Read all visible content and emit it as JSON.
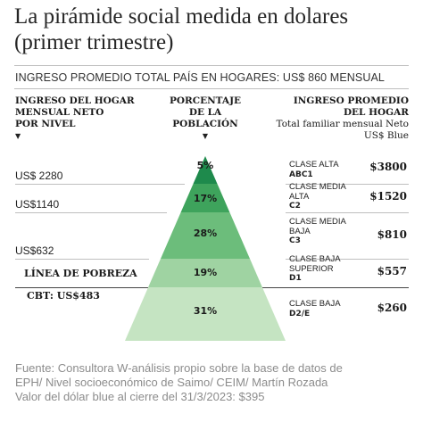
{
  "header": {
    "title": "La pirámide social medida en dolares (primer trimestre)",
    "subtitle": "INGRESO PROMEDIO TOTAL PAÍS EN HOGARES: US$ 860 MENSUAL"
  },
  "columns": {
    "left": [
      "INGRESO DEL HOGAR",
      "MENSUAL NETO",
      "POR NIVEL"
    ],
    "middle": [
      "PORCENTAJE",
      "DE LA",
      "POBLACIÓN"
    ],
    "right": [
      "INGRESO PROMEDIO",
      "DEL HOGAR"
    ],
    "right_sub": [
      "Total familiar mensual Neto",
      "US$ Blue"
    ],
    "arrow": "▼"
  },
  "thresholds": [
    "US$ 2280",
    "US$1140",
    "US$632"
  ],
  "poverty_line": "LÍNEA DE POBREZA",
  "cbt": "CBT: US$483",
  "chart_data": {
    "type": "pyramid",
    "title": "La pirámide social medida en dolares (primer trimestre)",
    "levels": [
      {
        "class_lines": [
          "CLASE ALTA"
        ],
        "code": "ABC1",
        "percent_label": "5%",
        "percent": 5,
        "income_label": "$3800",
        "income": 3800,
        "color": "#1e8a4c"
      },
      {
        "class_lines": [
          "CLASE MEDIA",
          "ALTA"
        ],
        "code": "C2",
        "percent_label": "17%",
        "percent": 17,
        "income_label": "$1520",
        "income": 1520,
        "color": "#3ea35c"
      },
      {
        "class_lines": [
          "CLASE MEDIA",
          "BAJA"
        ],
        "code": "C3",
        "percent_label": "28%",
        "percent": 28,
        "income_label": "$810",
        "income": 810,
        "color": "#6cbd7b"
      },
      {
        "class_lines": [
          "CLASE BAJA",
          "SUPERIOR"
        ],
        "code": "D1",
        "percent_label": "19%",
        "percent": 19,
        "income_label": "$557",
        "income": 557,
        "color": "#9fd3a2"
      },
      {
        "class_lines": [
          "CLASE BAJA"
        ],
        "code": "D2/E",
        "percent_label": "31%",
        "percent": 31,
        "income_label": "$260",
        "income": 260,
        "color": "#c5e4c2"
      }
    ]
  },
  "source": {
    "lines": [
      "Fuente: Consultora W-análisis propio sobre la base de datos de",
      "EPH/ Nivel socioeconómico de Saimo/ CEIM/ Martín Rozada",
      "Valor del dólar blue al cierre del 31/3/2023: $395"
    ]
  }
}
